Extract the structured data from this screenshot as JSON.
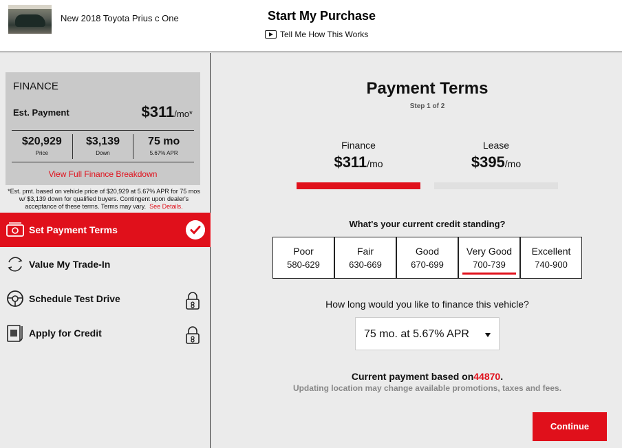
{
  "header": {
    "vehicle_title": "New 2018 Toyota Prius c One",
    "purchase_title": "Start My Purchase",
    "how_it_works": "Tell Me How This Works"
  },
  "finance_card": {
    "title": "FINANCE",
    "est_label": "Est. Payment",
    "est_amount": "$311",
    "est_suffix": "/mo*",
    "cols": [
      {
        "value": "$20,929",
        "label": "Price"
      },
      {
        "value": "$3,139",
        "label": "Down"
      },
      {
        "value": "75 mo",
        "label": "5.67% APR"
      }
    ],
    "breakdown_link": "View Full Finance Breakdown",
    "disclaimer": "*Est. pmt. based on vehicle price of $20,929 at 5.67% APR for 75 mos w/ $3,139 down for qualified buyers. Contingent upon dealer's acceptance of these terms. Terms may vary.",
    "see_details": "See Details."
  },
  "steps": [
    {
      "label": "Set Payment Terms",
      "icon": "payment-icon",
      "state": "active"
    },
    {
      "label": "Value My Trade-In",
      "icon": "trade-in-icon",
      "state": "open"
    },
    {
      "label": "Schedule Test Drive",
      "icon": "steering-wheel-icon",
      "state": "locked"
    },
    {
      "label": "Apply for Credit",
      "icon": "credit-application-icon",
      "state": "locked"
    }
  ],
  "main": {
    "title": "Payment Terms",
    "step": "Step 1 of 2",
    "options": [
      {
        "name": "Finance",
        "amount": "$311",
        "suffix": "/mo",
        "selected": true
      },
      {
        "name": "Lease",
        "amount": "$395",
        "suffix": "/mo",
        "selected": false
      }
    ],
    "credit_question": "What's your current credit standing?",
    "credit_tiers": [
      {
        "name": "Poor",
        "range": "580-629"
      },
      {
        "name": "Fair",
        "range": "630-669"
      },
      {
        "name": "Good",
        "range": "670-699"
      },
      {
        "name": "Very Good",
        "range": "700-739",
        "selected": true
      },
      {
        "name": "Excellent",
        "range": "740-900"
      }
    ],
    "term_question": "How long would you like to finance this vehicle?",
    "term_selected": "75 mo. at 5.67% APR",
    "current_payment_label": "Current payment based on",
    "zip": "44870",
    "period": ".",
    "update_note": "Updating location may change available promotions, taxes and fees.",
    "continue_label": "Continue"
  },
  "colors": {
    "accent": "#e0101b",
    "panel": "#ebebeb",
    "card": "#c9c9c9"
  }
}
